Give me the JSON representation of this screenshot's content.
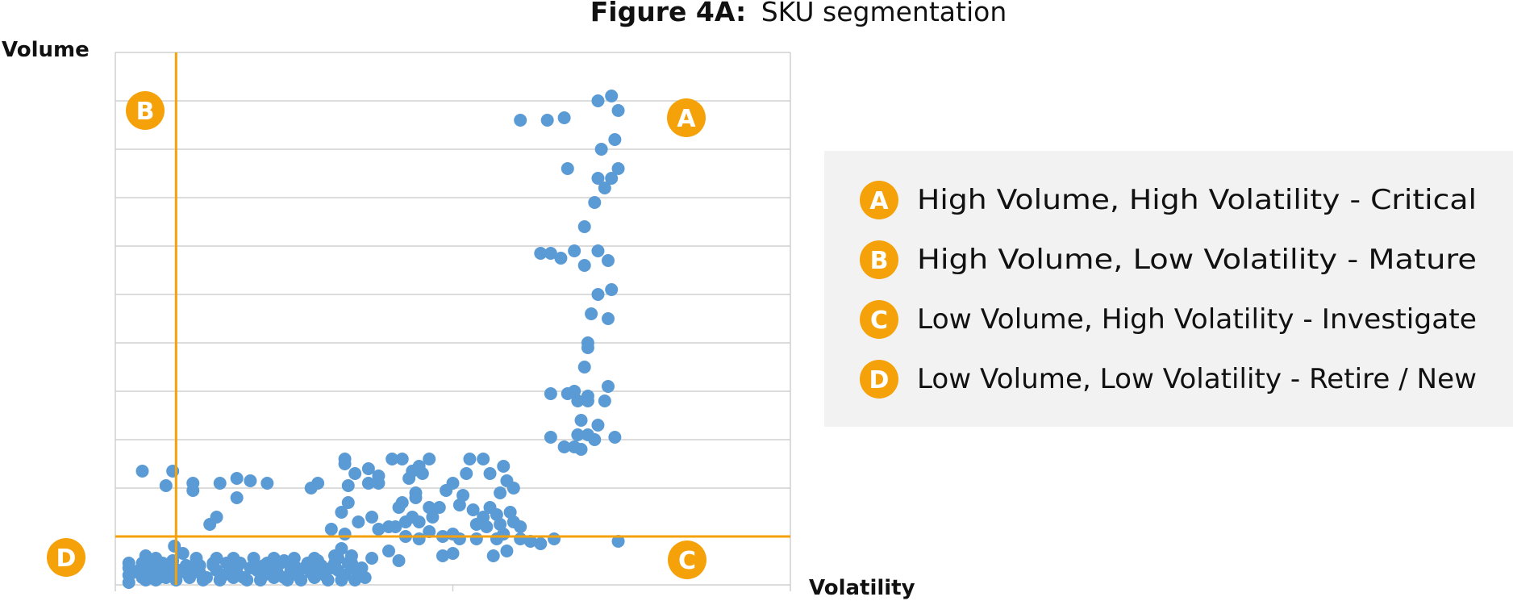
{
  "chart_data": {
    "type": "scatter",
    "title": {
      "prefix": "Figure 4A:",
      "text": "SKU segmentation"
    },
    "xlabel": "Volatility",
    "ylabel": "Volume",
    "xlim": [
      0,
      20
    ],
    "ylim": [
      0,
      11
    ],
    "grid": "horizontal",
    "threshold_lines": {
      "x": 1.8,
      "y": 1
    },
    "quadrant_badges": [
      "A",
      "B",
      "C",
      "D"
    ],
    "legend": {
      "position": "right",
      "entries": [
        {
          "letter": "A",
          "text": "High Volume, High Volatility - Critical"
        },
        {
          "letter": "B",
          "text": "High Volume, Low Volatility - Mature"
        },
        {
          "letter": "C",
          "text": "Low Volume, High Volatility - Investigate"
        },
        {
          "letter": "D",
          "text": "Low Volume, Low Volatility - Retire / New"
        }
      ]
    },
    "series": [
      {
        "points": [
          [
            12.0,
            9.6
          ],
          [
            12.8,
            9.6
          ],
          [
            13.3,
            9.65
          ],
          [
            14.3,
            10
          ],
          [
            14.7,
            10.1
          ],
          [
            14.9,
            9.8
          ],
          [
            14.8,
            9.2
          ],
          [
            14.4,
            9.0
          ],
          [
            14.9,
            8.6
          ],
          [
            14.3,
            8.4
          ],
          [
            14.7,
            8.4
          ],
          [
            14.5,
            8.2
          ],
          [
            13.4,
            8.6
          ],
          [
            14.2,
            7.9
          ],
          [
            13.9,
            7.4
          ],
          [
            14.3,
            6.9
          ],
          [
            13.6,
            6.9
          ],
          [
            12.6,
            6.85
          ],
          [
            12.9,
            6.85
          ],
          [
            13.2,
            6.75
          ],
          [
            13.9,
            6.6
          ],
          [
            14.6,
            6.7
          ],
          [
            14.3,
            6.0
          ],
          [
            14.7,
            6.1
          ],
          [
            14.1,
            5.6
          ],
          [
            14.6,
            5.5
          ],
          [
            14.0,
            4.9
          ],
          [
            14.0,
            5.0
          ],
          [
            13.9,
            4.5
          ],
          [
            12.9,
            3.95
          ],
          [
            13.6,
            4.0
          ],
          [
            13.4,
            3.95
          ],
          [
            13.7,
            3.8
          ],
          [
            14.0,
            3.9
          ],
          [
            14.0,
            3.8
          ],
          [
            14.5,
            3.8
          ],
          [
            14.6,
            4.1
          ],
          [
            13.8,
            3.4
          ],
          [
            14.3,
            3.3
          ],
          [
            14.0,
            3.1
          ],
          [
            13.7,
            3.1
          ],
          [
            12.9,
            3.05
          ],
          [
            13.3,
            2.85
          ],
          [
            13.6,
            2.85
          ],
          [
            13.8,
            2.8
          ],
          [
            14.2,
            3.0
          ],
          [
            14.8,
            3.05
          ],
          [
            0.8,
            2.35
          ],
          [
            1.7,
            2.35
          ],
          [
            1.5,
            2.05
          ],
          [
            2.3,
            2.1
          ],
          [
            2.3,
            1.95
          ],
          [
            3.1,
            2.1
          ],
          [
            3.6,
            2.2
          ],
          [
            4.0,
            2.15
          ],
          [
            4.5,
            2.1
          ],
          [
            3.6,
            1.8
          ],
          [
            3.0,
            1.4
          ],
          [
            2.8,
            1.25
          ],
          [
            5.8,
            2.0
          ],
          [
            6.0,
            2.1
          ],
          [
            6.8,
            2.5
          ],
          [
            6.8,
            2.6
          ],
          [
            7.1,
            2.3
          ],
          [
            7.5,
            2.4
          ],
          [
            7.8,
            2.25
          ],
          [
            8.2,
            2.6
          ],
          [
            8.5,
            2.6
          ],
          [
            8.8,
            2.35
          ],
          [
            9.0,
            2.45
          ],
          [
            9.3,
            2.6
          ],
          [
            9.1,
            2.3
          ],
          [
            8.7,
            2.2
          ],
          [
            7.8,
            2.1
          ],
          [
            6.9,
            2.05
          ],
          [
            7.5,
            2.1
          ],
          [
            8.9,
            1.9
          ],
          [
            6.9,
            1.7
          ],
          [
            6.7,
            1.5
          ],
          [
            7.6,
            1.4
          ],
          [
            8.4,
            1.6
          ],
          [
            8.5,
            1.7
          ],
          [
            8.9,
            1.8
          ],
          [
            9.3,
            1.6
          ],
          [
            9.6,
            1.6
          ],
          [
            9.4,
            1.4
          ],
          [
            9.0,
            1.3
          ],
          [
            8.8,
            1.4
          ],
          [
            8.6,
            1.3
          ],
          [
            8.3,
            1.2
          ],
          [
            8.1,
            1.2
          ],
          [
            7.8,
            1.15
          ],
          [
            7.2,
            1.3
          ],
          [
            6.8,
            1.05
          ],
          [
            6.4,
            1.15
          ],
          [
            10.0,
            2.1
          ],
          [
            10.3,
            1.85
          ],
          [
            10.2,
            1.65
          ],
          [
            10.6,
            1.55
          ],
          [
            10.9,
            1.4
          ],
          [
            11.3,
            1.45
          ],
          [
            11.6,
            2.15
          ],
          [
            11.4,
            1.9
          ],
          [
            11.8,
            2.0
          ],
          [
            11.1,
            1.6
          ],
          [
            11.7,
            1.5
          ],
          [
            11.4,
            1.25
          ],
          [
            10.7,
            1.25
          ],
          [
            11.0,
            1.2
          ],
          [
            11.5,
            1.05
          ],
          [
            11.8,
            1.3
          ],
          [
            12.0,
            1.2
          ],
          [
            10.0,
            1.05
          ],
          [
            9.7,
            1.0
          ],
          [
            9.3,
            1.1
          ],
          [
            8.6,
            1.0
          ],
          [
            9.8,
            1.95
          ],
          [
            10.4,
            2.3
          ],
          [
            10.9,
            2.6
          ],
          [
            11.1,
            2.3
          ],
          [
            11.5,
            2.45
          ],
          [
            10.5,
            2.6
          ],
          [
            12.0,
            0.95
          ],
          [
            11.3,
            0.95
          ],
          [
            10.7,
            0.95
          ],
          [
            10.2,
            0.95
          ],
          [
            9.0,
            0.95
          ],
          [
            0.4,
            0.35
          ],
          [
            0.4,
            0.2
          ],
          [
            0.4,
            0.05
          ],
          [
            0.7,
            0.3
          ],
          [
            0.8,
            0.15
          ],
          [
            1.0,
            0.25
          ],
          [
            1.1,
            0.3
          ],
          [
            1.3,
            0.15
          ],
          [
            1.4,
            0.25
          ],
          [
            1.6,
            0.25
          ],
          [
            1.7,
            0.4
          ],
          [
            1.9,
            0.3
          ],
          [
            2.1,
            0.25
          ],
          [
            2.3,
            0.35
          ],
          [
            2.5,
            0.25
          ],
          [
            2.7,
            0.15
          ],
          [
            2.9,
            0.4
          ],
          [
            3.0,
            0.3
          ],
          [
            3.2,
            0.2
          ],
          [
            3.4,
            0.35
          ],
          [
            3.6,
            0.25
          ],
          [
            3.8,
            0.15
          ],
          [
            4.0,
            0.35
          ],
          [
            4.2,
            0.3
          ],
          [
            4.4,
            0.2
          ],
          [
            4.6,
            0.35
          ],
          [
            4.8,
            0.25
          ],
          [
            5.0,
            0.15
          ],
          [
            5.2,
            0.3
          ],
          [
            5.4,
            0.2
          ],
          [
            5.6,
            0.35
          ],
          [
            5.8,
            0.25
          ],
          [
            6.0,
            0.3
          ],
          [
            6.2,
            0.2
          ],
          [
            6.4,
            0.35
          ],
          [
            6.6,
            0.3
          ],
          [
            6.8,
            0.2
          ],
          [
            7.0,
            0.35
          ],
          [
            7.2,
            0.25
          ],
          [
            7.4,
            0.15
          ],
          [
            0.5,
            0.25
          ],
          [
            0.9,
            0.1
          ],
          [
            1.2,
            0.1
          ],
          [
            1.5,
            0.15
          ],
          [
            1.8,
            0.1
          ],
          [
            2.2,
            0.15
          ],
          [
            2.6,
            0.1
          ],
          [
            3.1,
            0.1
          ],
          [
            3.5,
            0.15
          ],
          [
            3.9,
            0.1
          ],
          [
            4.3,
            0.1
          ],
          [
            4.7,
            0.15
          ],
          [
            5.1,
            0.1
          ],
          [
            5.5,
            0.1
          ],
          [
            5.9,
            0.15
          ],
          [
            6.3,
            0.1
          ],
          [
            6.7,
            0.1
          ],
          [
            7.1,
            0.1
          ],
          [
            7.3,
            0.35
          ],
          [
            6.9,
            0.45
          ],
          [
            6.5,
            0.45
          ],
          [
            6.1,
            0.4
          ],
          [
            5.7,
            0.45
          ],
          [
            5.3,
            0.4
          ],
          [
            4.9,
            0.45
          ],
          [
            4.5,
            0.45
          ],
          [
            4.1,
            0.4
          ],
          [
            3.7,
            0.45
          ],
          [
            3.3,
            0.45
          ],
          [
            2.9,
            0.45
          ],
          [
            2.5,
            0.4
          ],
          [
            2.1,
            0.4
          ],
          [
            1.7,
            0.5
          ],
          [
            1.4,
            0.45
          ],
          [
            1.1,
            0.45
          ],
          [
            0.8,
            0.45
          ],
          [
            0.4,
            0.45
          ],
          [
            1.75,
            0.8
          ],
          [
            2.0,
            0.65
          ],
          [
            2.4,
            0.55
          ],
          [
            3.0,
            0.55
          ],
          [
            3.5,
            0.55
          ],
          [
            4.1,
            0.55
          ],
          [
            4.7,
            0.55
          ],
          [
            5.3,
            0.55
          ],
          [
            5.9,
            0.55
          ],
          [
            6.5,
            0.6
          ],
          [
            6.7,
            0.75
          ],
          [
            7.0,
            0.6
          ],
          [
            7.6,
            0.55
          ],
          [
            8.1,
            0.7
          ],
          [
            8.4,
            0.5
          ],
          [
            9.7,
            0.6
          ],
          [
            10.0,
            0.65
          ],
          [
            11.2,
            0.6
          ],
          [
            11.6,
            0.7
          ],
          [
            12.3,
            0.9
          ],
          [
            12.6,
            0.85
          ],
          [
            13.0,
            0.95
          ],
          [
            14.9,
            0.9
          ],
          [
            1.2,
            0.55
          ],
          [
            0.9,
            0.6
          ],
          [
            3.6,
            0.35
          ],
          [
            4.4,
            0.4
          ],
          [
            5.0,
            0.5
          ],
          [
            6.0,
            0.5
          ],
          [
            6.6,
            0.55
          ],
          [
            7.0,
            0.45
          ]
        ]
      }
    ]
  }
}
